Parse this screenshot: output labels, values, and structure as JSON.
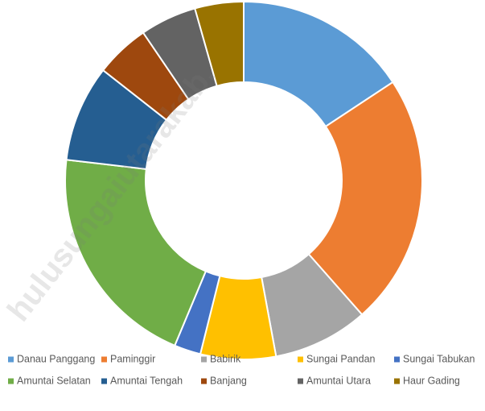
{
  "chart_data": {
    "type": "donut",
    "categories": [
      "Danau Panggang",
      "Paminggir",
      "Babirik",
      "Sungai Pandan",
      "Sungai Tabukan",
      "Amuntai Selatan",
      "Amuntai Tengah",
      "Banjang",
      "Amuntai Utara",
      "Haur Gading"
    ],
    "values": [
      15.7,
      22.7,
      8.6,
      6.8,
      2.4,
      20.5,
      8.7,
      4.9,
      5.1,
      4.4
    ],
    "colors": [
      "#5b9bd5",
      "#ed7d31",
      "#a5a5a5",
      "#ffc000",
      "#4472c4",
      "#70ad47",
      "#255e91",
      "#9e480e",
      "#636363",
      "#997300"
    ],
    "legend": "bottom",
    "watermark": "hulusungaiutarakab."
  }
}
